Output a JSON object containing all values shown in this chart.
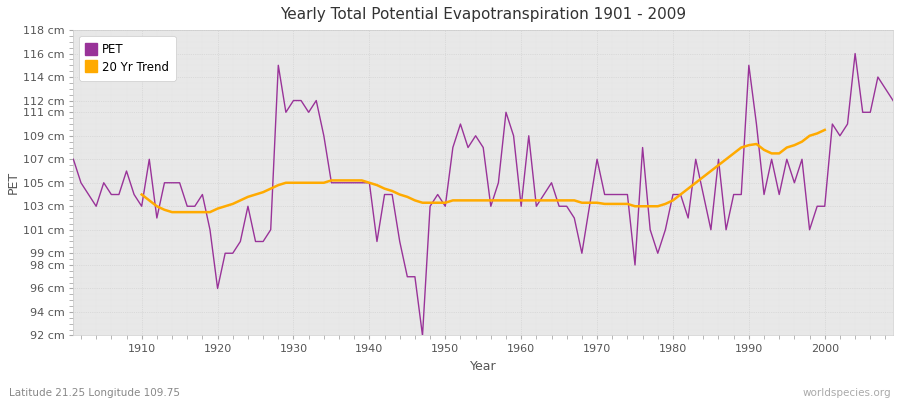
{
  "title": "Yearly Total Potential Evapotranspiration 1901 - 2009",
  "xlabel": "Year",
  "ylabel": "PET",
  "subtitle_left": "Latitude 21.25 Longitude 109.75",
  "watermark": "worldspecies.org",
  "fig_bg_color": "#ffffff",
  "plot_bg_color": "#e8e8e8",
  "pet_color": "#993399",
  "trend_color": "#ffaa00",
  "ylim_min": 92,
  "ylim_max": 118,
  "ytick_values": [
    92,
    94,
    96,
    98,
    99,
    101,
    103,
    105,
    107,
    109,
    111,
    112,
    114,
    116,
    118
  ],
  "ytick_labels": [
    "92 cm",
    "94 cm",
    "96 cm",
    "98 cm",
    "99 cm",
    "101 cm",
    "103 cm",
    "105 cm",
    "107 cm",
    "109 cm",
    "111 cm",
    "112 cm",
    "114 cm",
    "116 cm",
    "118 cm"
  ],
  "xtick_values": [
    1910,
    1920,
    1930,
    1940,
    1950,
    1960,
    1970,
    1980,
    1990,
    2000
  ],
  "xlim": [
    1901,
    2009
  ],
  "years": [
    1901,
    1902,
    1903,
    1904,
    1905,
    1906,
    1907,
    1908,
    1909,
    1910,
    1911,
    1912,
    1913,
    1914,
    1915,
    1916,
    1917,
    1918,
    1919,
    1920,
    1921,
    1922,
    1923,
    1924,
    1925,
    1926,
    1927,
    1928,
    1929,
    1930,
    1931,
    1932,
    1933,
    1934,
    1935,
    1936,
    1937,
    1938,
    1939,
    1940,
    1941,
    1942,
    1943,
    1944,
    1945,
    1946,
    1947,
    1948,
    1949,
    1950,
    1951,
    1952,
    1953,
    1954,
    1955,
    1956,
    1957,
    1958,
    1959,
    1960,
    1961,
    1962,
    1963,
    1964,
    1965,
    1966,
    1967,
    1968,
    1969,
    1970,
    1971,
    1972,
    1973,
    1974,
    1975,
    1976,
    1977,
    1978,
    1979,
    1980,
    1981,
    1982,
    1983,
    1984,
    1985,
    1986,
    1987,
    1988,
    1989,
    1990,
    1991,
    1992,
    1993,
    1994,
    1995,
    1996,
    1997,
    1998,
    1999,
    2000,
    2001,
    2002,
    2003,
    2004,
    2005,
    2006,
    2007,
    2008,
    2009
  ],
  "pet_values": [
    107,
    105,
    104,
    103,
    105,
    104,
    104,
    106,
    104,
    103,
    107,
    102,
    105,
    105,
    105,
    103,
    103,
    104,
    101,
    96,
    99,
    99,
    100,
    103,
    100,
    100,
    101,
    115,
    111,
    112,
    112,
    111,
    112,
    109,
    105,
    105,
    105,
    105,
    105,
    105,
    100,
    104,
    104,
    100,
    97,
    97,
    92,
    103,
    104,
    103,
    108,
    110,
    108,
    109,
    108,
    103,
    105,
    111,
    109,
    103,
    109,
    103,
    104,
    105,
    103,
    103,
    102,
    99,
    103,
    107,
    104,
    104,
    104,
    104,
    98,
    108,
    101,
    99,
    101,
    104,
    104,
    102,
    107,
    104,
    101,
    107,
    101,
    104,
    104,
    115,
    110,
    104,
    107,
    104,
    107,
    105,
    107,
    101,
    103,
    103,
    110,
    109,
    110,
    116,
    111,
    111,
    114,
    113,
    112
  ],
  "trend_years": [
    1910,
    1911,
    1912,
    1913,
    1914,
    1915,
    1916,
    1917,
    1918,
    1919,
    1920,
    1921,
    1922,
    1923,
    1924,
    1925,
    1926,
    1927,
    1928,
    1929,
    1930,
    1931,
    1932,
    1933,
    1934,
    1935,
    1936,
    1937,
    1938,
    1939,
    1940,
    1941,
    1942,
    1943,
    1944,
    1945,
    1946,
    1947,
    1948,
    1949,
    1950,
    1951,
    1952,
    1953,
    1954,
    1955,
    1956,
    1957,
    1958,
    1959,
    1960,
    1961,
    1962,
    1963,
    1964,
    1965,
    1966,
    1967,
    1968,
    1969,
    1970,
    1971,
    1972,
    1973,
    1974,
    1975,
    1976,
    1977,
    1978,
    1979,
    1980,
    1981,
    1982,
    1983,
    1984,
    1985,
    1986,
    1987,
    1988,
    1989,
    1990,
    1991,
    1992,
    1993,
    1994,
    1995,
    1996,
    1997,
    1998,
    1999,
    2000
  ],
  "trend_values": [
    104.0,
    103.5,
    103.0,
    102.7,
    102.5,
    102.5,
    102.5,
    102.5,
    102.5,
    102.5,
    102.8,
    103.0,
    103.2,
    103.5,
    103.8,
    104.0,
    104.2,
    104.5,
    104.8,
    105.0,
    105.0,
    105.0,
    105.0,
    105.0,
    105.0,
    105.2,
    105.2,
    105.2,
    105.2,
    105.2,
    105.0,
    104.8,
    104.5,
    104.3,
    104.0,
    103.8,
    103.5,
    103.3,
    103.3,
    103.3,
    103.3,
    103.5,
    103.5,
    103.5,
    103.5,
    103.5,
    103.5,
    103.5,
    103.5,
    103.5,
    103.5,
    103.5,
    103.5,
    103.5,
    103.5,
    103.5,
    103.5,
    103.5,
    103.3,
    103.3,
    103.3,
    103.2,
    103.2,
    103.2,
    103.2,
    103.0,
    103.0,
    103.0,
    103.0,
    103.2,
    103.5,
    104.0,
    104.5,
    105.0,
    105.5,
    106.0,
    106.5,
    107.0,
    107.5,
    108.0,
    108.2,
    108.3,
    107.8,
    107.5,
    107.5,
    108.0,
    108.2,
    108.5,
    109.0,
    109.2,
    109.5
  ]
}
